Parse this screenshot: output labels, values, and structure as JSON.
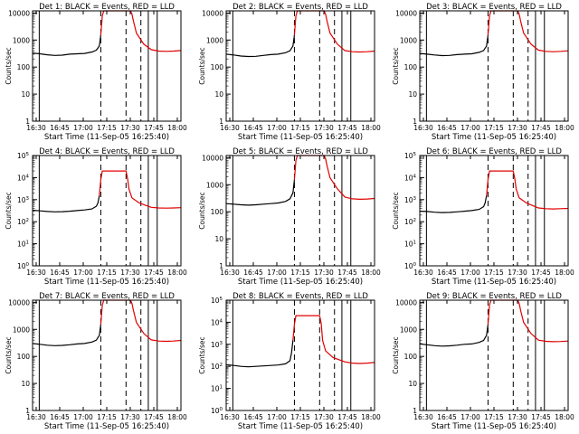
{
  "figure": {
    "description_text": "RHESSI detector rate panels",
    "start_time_label": "Start Time (11-Sep-05 16:25:40)",
    "colors": {
      "events": "#000000",
      "lld": "#e00000",
      "background": "#ffffff"
    }
  },
  "chart_data": [
    {
      "type": "line",
      "detector": "1",
      "title": "Det 1: BLACK = Events, RED = LLD",
      "xlabel": "Start Time (11-Sep-05 16:25:40)",
      "ylabel": "Counts/sec",
      "x_ticks": [
        "16:30",
        "16:45",
        "17:00",
        "17:15",
        "17:30",
        "17:45",
        "18:00"
      ],
      "y_scale": "log",
      "y_tick_style": "plain",
      "y_ticks": [
        "1",
        "10",
        "100",
        "1000",
        "10000"
      ],
      "ylim": [
        1,
        12000
      ],
      "xlim_minutes": [
        0,
        100
      ],
      "markers_solid_min": [
        4.5,
        78,
        84
      ],
      "markers_dashed_min": [
        46,
        63,
        73
      ],
      "series": [
        {
          "name": "Events",
          "color": "#000000",
          "x": [
            0,
            5,
            10,
            15,
            20,
            25,
            30,
            35,
            40,
            43,
            45,
            46
          ],
          "y": [
            330,
            310,
            285,
            270,
            275,
            300,
            310,
            320,
            360,
            420,
            600,
            1500
          ]
        },
        {
          "name": "LLD",
          "color": "#e00000",
          "x": [
            46,
            47,
            48,
            66,
            67,
            68,
            70,
            75,
            80,
            85,
            90,
            95,
            100
          ],
          "y": [
            1500,
            8000,
            12000,
            12000,
            9000,
            5000,
            1800,
            700,
            440,
            390,
            380,
            390,
            410
          ]
        }
      ]
    },
    {
      "type": "line",
      "detector": "2",
      "title": "Det 2: BLACK = Events, RED = LLD",
      "xlabel": "Start Time (11-Sep-05 16:25:40)",
      "ylabel": "Counts/sec",
      "x_ticks": [
        "16:30",
        "16:45",
        "17:00",
        "17:15",
        "17:30",
        "17:45",
        "18:00"
      ],
      "y_scale": "log",
      "y_tick_style": "plain",
      "y_ticks": [
        "1",
        "10",
        "100",
        "1000",
        "10000"
      ],
      "ylim": [
        1,
        12000
      ],
      "xlim_minutes": [
        0,
        100
      ],
      "markers_solid_min": [
        4.5,
        78,
        84
      ],
      "markers_dashed_min": [
        46,
        63,
        73
      ],
      "series": [
        {
          "name": "Events",
          "color": "#000000",
          "x": [
            0,
            5,
            10,
            15,
            20,
            25,
            30,
            35,
            40,
            43,
            45,
            46
          ],
          "y": [
            300,
            280,
            255,
            245,
            250,
            270,
            290,
            300,
            340,
            400,
            600,
            1500
          ]
        },
        {
          "name": "LLD",
          "color": "#e00000",
          "x": [
            46,
            47,
            48,
            66,
            67,
            68,
            70,
            75,
            80,
            85,
            90,
            95,
            100
          ],
          "y": [
            1500,
            8000,
            12000,
            12000,
            9000,
            5000,
            1800,
            700,
            410,
            370,
            360,
            370,
            390
          ]
        }
      ]
    },
    {
      "type": "line",
      "detector": "3",
      "title": "Det 3: BLACK = Events, RED = LLD",
      "xlabel": "Start Time (11-Sep-05 16:25:40)",
      "ylabel": "Counts/sec",
      "x_ticks": [
        "16:30",
        "16:45",
        "17:00",
        "17:15",
        "17:30",
        "17:45",
        "18:00"
      ],
      "y_scale": "log",
      "y_tick_style": "plain",
      "y_ticks": [
        "1",
        "10",
        "100",
        "1000",
        "10000"
      ],
      "ylim": [
        1,
        12000
      ],
      "xlim_minutes": [
        0,
        100
      ],
      "markers_solid_min": [
        4.5,
        78,
        84
      ],
      "markers_dashed_min": [
        46,
        63,
        73
      ],
      "series": [
        {
          "name": "Events",
          "color": "#000000",
          "x": [
            0,
            5,
            10,
            15,
            20,
            25,
            30,
            35,
            40,
            43,
            45,
            46
          ],
          "y": [
            320,
            300,
            280,
            265,
            270,
            290,
            300,
            310,
            350,
            410,
            600,
            1500
          ]
        },
        {
          "name": "LLD",
          "color": "#e00000",
          "x": [
            46,
            47,
            48,
            66,
            67,
            68,
            70,
            75,
            80,
            85,
            90,
            95,
            100
          ],
          "y": [
            1500,
            8000,
            12000,
            12000,
            9000,
            5000,
            1800,
            700,
            420,
            380,
            370,
            380,
            400
          ]
        }
      ]
    },
    {
      "type": "line",
      "detector": "4",
      "title": "Det 4: BLACK = Events, RED = LLD",
      "xlabel": "Start Time (11-Sep-05 16:25:40)",
      "ylabel": "Counts/sec",
      "x_ticks": [
        "16:30",
        "16:45",
        "17:00",
        "17:15",
        "17:30",
        "17:45",
        "18:00"
      ],
      "y_scale": "log",
      "y_tick_style": "exp",
      "y_ticks": [
        "10^0",
        "10^1",
        "10^2",
        "10^3",
        "10^4",
        "10^5"
      ],
      "ylim": [
        1,
        100000
      ],
      "xlim_minutes": [
        0,
        100
      ],
      "markers_solid_min": [
        4.5,
        78,
        84
      ],
      "markers_dashed_min": [
        46,
        63,
        73
      ],
      "series": [
        {
          "name": "Events",
          "color": "#000000",
          "x": [
            0,
            5,
            10,
            15,
            20,
            25,
            30,
            35,
            40,
            43,
            44,
            45
          ],
          "y": [
            330,
            310,
            290,
            280,
            285,
            300,
            320,
            340,
            380,
            500,
            700,
            1500
          ]
        },
        {
          "name": "LLD",
          "color": "#e00000",
          "x": [
            45,
            46,
            47,
            63,
            64,
            65,
            67,
            72,
            80,
            85,
            90,
            95,
            100
          ],
          "y": [
            1500,
            8000,
            20000,
            20000,
            9000,
            3000,
            1200,
            700,
            450,
            420,
            410,
            420,
            430
          ]
        }
      ]
    },
    {
      "type": "line",
      "detector": "5",
      "title": "Det 5: BLACK = Events, RED = LLD",
      "xlabel": "Start Time (11-Sep-05 16:25:40)",
      "ylabel": "Counts/sec",
      "x_ticks": [
        "16:30",
        "16:45",
        "17:00",
        "17:15",
        "17:30",
        "17:45",
        "18:00"
      ],
      "y_scale": "log",
      "y_tick_style": "plain",
      "y_ticks": [
        "1",
        "10",
        "100",
        "1000",
        "10000"
      ],
      "ylim": [
        1,
        12000
      ],
      "xlim_minutes": [
        0,
        100
      ],
      "markers_solid_min": [
        4.5,
        78,
        84
      ],
      "markers_dashed_min": [
        46,
        63,
        73
      ],
      "series": [
        {
          "name": "Events",
          "color": "#000000",
          "x": [
            0,
            5,
            10,
            15,
            20,
            25,
            30,
            35,
            40,
            43,
            45,
            46
          ],
          "y": [
            200,
            190,
            180,
            175,
            180,
            190,
            200,
            210,
            240,
            300,
            500,
            1500
          ]
        },
        {
          "name": "LLD",
          "color": "#e00000",
          "x": [
            46,
            47,
            48,
            66,
            67,
            68,
            70,
            75,
            80,
            85,
            90,
            95,
            100
          ],
          "y": [
            1500,
            8000,
            12000,
            12000,
            9000,
            5000,
            1800,
            700,
            350,
            300,
            290,
            295,
            310
          ]
        }
      ]
    },
    {
      "type": "line",
      "detector": "6",
      "title": "Det 6: BLACK = Events, RED = LLD",
      "xlabel": "Start Time (11-Sep-05 16:25:40)",
      "ylabel": "Counts/sec",
      "x_ticks": [
        "16:30",
        "16:45",
        "17:00",
        "17:15",
        "17:30",
        "17:45",
        "18:00"
      ],
      "y_scale": "log",
      "y_tick_style": "exp",
      "y_ticks": [
        "10^0",
        "10^1",
        "10^2",
        "10^3",
        "10^4",
        "10^5"
      ],
      "ylim": [
        1,
        100000
      ],
      "xlim_minutes": [
        0,
        100
      ],
      "markers_solid_min": [
        4.5,
        78,
        84
      ],
      "markers_dashed_min": [
        46,
        63,
        73
      ],
      "series": [
        {
          "name": "Events",
          "color": "#000000",
          "x": [
            0,
            5,
            10,
            15,
            20,
            25,
            30,
            35,
            40,
            43,
            44,
            45
          ],
          "y": [
            300,
            290,
            270,
            260,
            265,
            280,
            300,
            320,
            360,
            480,
            700,
            1500
          ]
        },
        {
          "name": "LLD",
          "color": "#e00000",
          "x": [
            45,
            46,
            47,
            63,
            64,
            65,
            67,
            72,
            80,
            85,
            90,
            95,
            100
          ],
          "y": [
            1500,
            8000,
            20000,
            20000,
            9000,
            3000,
            1200,
            700,
            420,
            390,
            380,
            390,
            400
          ]
        }
      ]
    },
    {
      "type": "line",
      "detector": "7",
      "title": "Det 7: BLACK = Events, RED = LLD",
      "xlabel": "Start Time (11-Sep-05 16:25:40)",
      "ylabel": "Counts/sec",
      "x_ticks": [
        "16:30",
        "16:45",
        "17:00",
        "17:15",
        "17:30",
        "17:45",
        "18:00"
      ],
      "y_scale": "log",
      "y_tick_style": "plain",
      "y_ticks": [
        "1",
        "10",
        "100",
        "1000",
        "10000"
      ],
      "ylim": [
        1,
        12000
      ],
      "xlim_minutes": [
        0,
        100
      ],
      "markers_solid_min": [
        4.5,
        78,
        84
      ],
      "markers_dashed_min": [
        46,
        63,
        73
      ],
      "series": [
        {
          "name": "Events",
          "color": "#000000",
          "x": [
            0,
            5,
            10,
            15,
            20,
            25,
            30,
            35,
            40,
            43,
            45,
            46
          ],
          "y": [
            300,
            280,
            260,
            250,
            255,
            270,
            290,
            300,
            340,
            400,
            600,
            1500
          ]
        },
        {
          "name": "LLD",
          "color": "#e00000",
          "x": [
            46,
            47,
            48,
            66,
            67,
            68,
            70,
            75,
            80,
            85,
            90,
            95,
            100
          ],
          "y": [
            1500,
            8000,
            12000,
            12000,
            9000,
            5000,
            1800,
            700,
            410,
            370,
            360,
            370,
            390
          ]
        }
      ]
    },
    {
      "type": "line",
      "detector": "8",
      "title": "Det 8: BLACK = Events, RED = LLD",
      "xlabel": "Start Time (11-Sep-05 16:25:40)",
      "ylabel": "Counts/sec",
      "x_ticks": [
        "16:30",
        "16:45",
        "17:00",
        "17:15",
        "17:30",
        "17:45",
        "18:00"
      ],
      "y_scale": "log",
      "y_tick_style": "exp",
      "y_ticks": [
        "10^0",
        "10^1",
        "10^2",
        "10^3",
        "10^4",
        "10^5"
      ],
      "ylim": [
        1,
        100000
      ],
      "xlim_minutes": [
        0,
        100
      ],
      "markers_solid_min": [
        4.5,
        78,
        84
      ],
      "markers_dashed_min": [
        46,
        63,
        73
      ],
      "series": [
        {
          "name": "Events",
          "color": "#000000",
          "x": [
            0,
            5,
            10,
            15,
            20,
            25,
            30,
            35,
            40,
            43,
            44,
            45
          ],
          "y": [
            120,
            110,
            100,
            95,
            100,
            105,
            110,
            115,
            130,
            180,
            400,
            1500
          ]
        },
        {
          "name": "LLD",
          "color": "#e00000",
          "x": [
            45,
            46,
            47,
            63,
            64,
            65,
            67,
            72,
            80,
            85,
            90,
            95,
            100
          ],
          "y": [
            1500,
            8000,
            20000,
            20000,
            9000,
            1500,
            500,
            250,
            160,
            140,
            135,
            140,
            150
          ]
        }
      ]
    },
    {
      "type": "line",
      "detector": "9",
      "title": "Det 9: BLACK = Events, RED = LLD",
      "xlabel": "Start Time (11-Sep-05 16:25:40)",
      "ylabel": "Counts/sec",
      "x_ticks": [
        "16:30",
        "16:45",
        "17:00",
        "17:15",
        "17:30",
        "17:45",
        "18:00"
      ],
      "y_scale": "log",
      "y_tick_style": "plain",
      "y_ticks": [
        "1",
        "10",
        "100",
        "1000",
        "10000"
      ],
      "ylim": [
        1,
        12000
      ],
      "xlim_minutes": [
        0,
        100
      ],
      "markers_solid_min": [
        4.5,
        78,
        84
      ],
      "markers_dashed_min": [
        46,
        63,
        73
      ],
      "series": [
        {
          "name": "Events",
          "color": "#000000",
          "x": [
            0,
            5,
            10,
            15,
            20,
            25,
            30,
            35,
            40,
            43,
            45,
            46
          ],
          "y": [
            290,
            270,
            250,
            240,
            245,
            260,
            280,
            290,
            330,
            390,
            600,
            1500
          ]
        },
        {
          "name": "LLD",
          "color": "#e00000",
          "x": [
            46,
            47,
            48,
            66,
            67,
            68,
            70,
            75,
            80,
            85,
            90,
            95,
            100
          ],
          "y": [
            1500,
            8000,
            12000,
            12000,
            9000,
            5000,
            1800,
            700,
            400,
            360,
            350,
            355,
            370
          ]
        }
      ]
    }
  ]
}
